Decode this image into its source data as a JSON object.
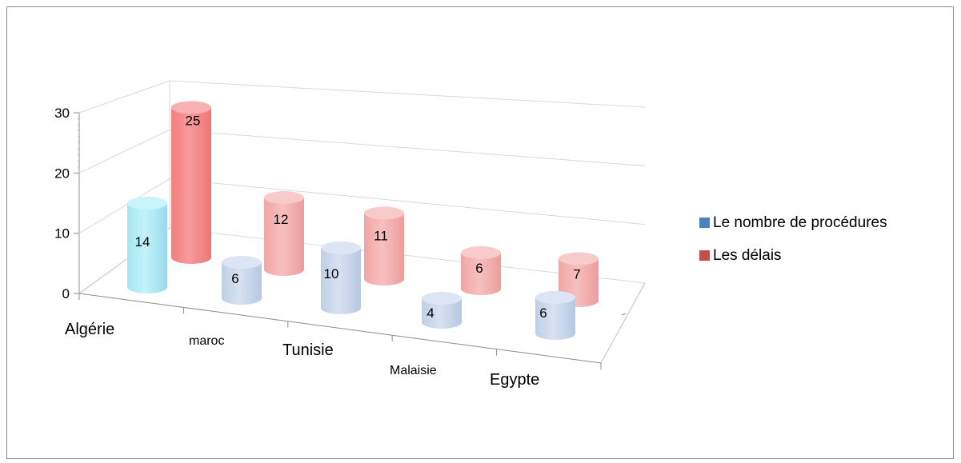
{
  "chart_data": {
    "type": "bar",
    "style": "3d-cylinder",
    "categories": [
      "Algérie",
      "maroc",
      "Tunisie",
      "Malaisie",
      "Egypte"
    ],
    "series": [
      {
        "name": "Le nombre de procédures",
        "values": [
          14,
          6,
          10,
          4,
          6
        ],
        "color": "#4f81bd"
      },
      {
        "name": "Les délais",
        "values": [
          25,
          12,
          11,
          6,
          7
        ],
        "color": "#c0504d"
      }
    ],
    "ylim": [
      0,
      30
    ],
    "yticks": [
      "0",
      "10",
      "20",
      "30"
    ],
    "grid": true,
    "legend_position": "right"
  }
}
